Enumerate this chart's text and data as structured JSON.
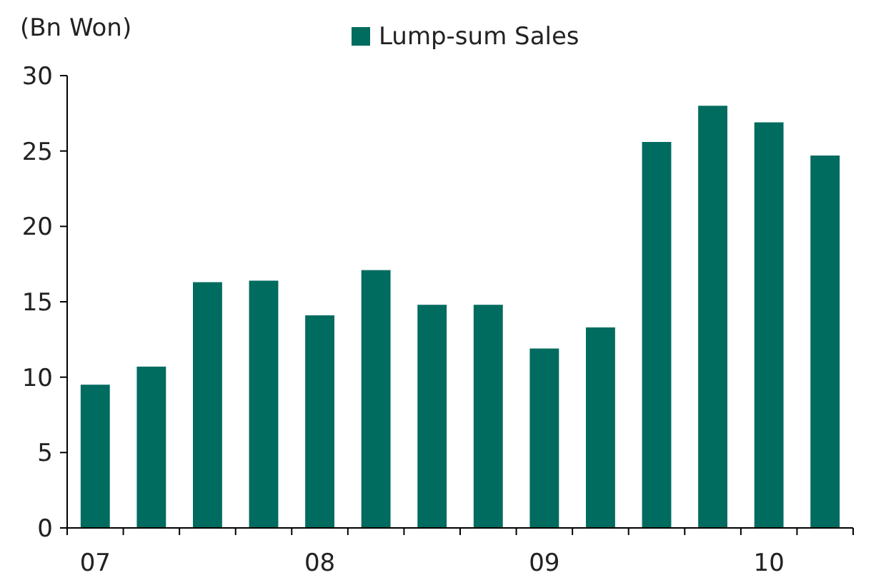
{
  "chart_data": {
    "type": "bar",
    "ylabel": "(Bn Won)",
    "categories": [
      "07",
      null,
      null,
      null,
      "08",
      null,
      null,
      null,
      "09",
      null,
      null,
      null,
      "10",
      null
    ],
    "series": [
      {
        "name": "Lump-sum Sales",
        "color": "#006b5f",
        "values": [
          9.5,
          10.7,
          16.3,
          16.4,
          14.1,
          17.1,
          14.8,
          14.8,
          11.9,
          13.3,
          25.6,
          28.0,
          26.9,
          24.7
        ]
      }
    ],
    "ylim": [
      0,
      30
    ],
    "yticks": [
      0,
      5,
      10,
      15,
      20,
      25,
      30
    ],
    "legend": "top"
  }
}
